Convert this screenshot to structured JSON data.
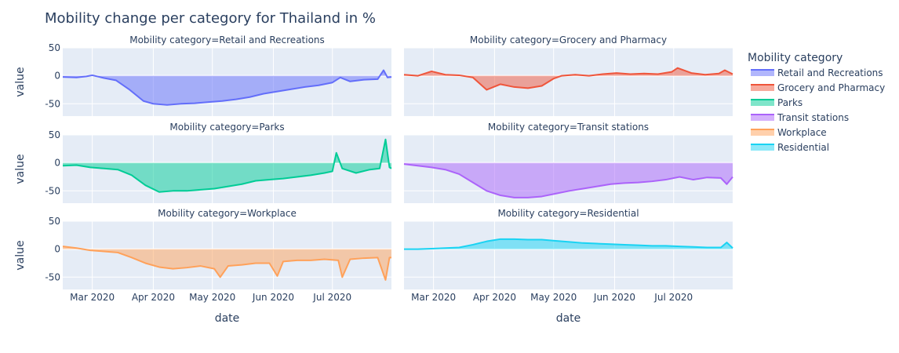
{
  "chart_data": {
    "type": "area",
    "title": "Mobility change per category for Thailand in %",
    "xlabel": "date",
    "ylabel": "value",
    "ylim": [
      -72,
      50
    ],
    "yticks": [
      50,
      0,
      -50
    ],
    "xrange": [
      "2020-02-15",
      "2020-07-31"
    ],
    "xticks": [
      {
        "date": "2020-03-01",
        "label": "Mar 2020"
      },
      {
        "date": "2020-04-01",
        "label": "Apr 2020"
      },
      {
        "date": "2020-05-01",
        "label": "May 2020"
      },
      {
        "date": "2020-06-01",
        "label": "Jun 2020"
      },
      {
        "date": "2020-07-01",
        "label": "Jul 2020"
      }
    ],
    "grid": true,
    "legend": {
      "title": "Mobility category",
      "position": "right"
    },
    "series": [
      {
        "name": "Retail and Recreations",
        "subtitle": "Mobility category=Retail and Recreations",
        "color": "#636efa",
        "points": [
          [
            "2020-02-15",
            -2
          ],
          [
            "2020-02-22",
            -3
          ],
          [
            "2020-02-27",
            -1
          ],
          [
            "2020-03-01",
            1
          ],
          [
            "2020-03-07",
            -4
          ],
          [
            "2020-03-13",
            -8
          ],
          [
            "2020-03-20",
            -25
          ],
          [
            "2020-03-27",
            -45
          ],
          [
            "2020-04-01",
            -50
          ],
          [
            "2020-04-08",
            -52
          ],
          [
            "2020-04-15",
            -50
          ],
          [
            "2020-04-22",
            -49
          ],
          [
            "2020-04-29",
            -47
          ],
          [
            "2020-05-06",
            -45
          ],
          [
            "2020-05-13",
            -42
          ],
          [
            "2020-05-20",
            -38
          ],
          [
            "2020-05-27",
            -32
          ],
          [
            "2020-06-03",
            -28
          ],
          [
            "2020-06-10",
            -24
          ],
          [
            "2020-06-17",
            -20
          ],
          [
            "2020-06-24",
            -17
          ],
          [
            "2020-07-01",
            -12
          ],
          [
            "2020-07-05",
            -3
          ],
          [
            "2020-07-10",
            -10
          ],
          [
            "2020-07-17",
            -7
          ],
          [
            "2020-07-24",
            -6
          ],
          [
            "2020-07-27",
            10
          ],
          [
            "2020-07-29",
            -3
          ],
          [
            "2020-07-31",
            -2
          ]
        ]
      },
      {
        "name": "Grocery and Pharmacy",
        "subtitle": "Mobility category=Grocery and Pharmacy",
        "color": "#ef553b",
        "points": [
          [
            "2020-02-15",
            2
          ],
          [
            "2020-02-22",
            0
          ],
          [
            "2020-02-29",
            8
          ],
          [
            "2020-03-07",
            2
          ],
          [
            "2020-03-14",
            1
          ],
          [
            "2020-03-21",
            -3
          ],
          [
            "2020-03-28",
            -25
          ],
          [
            "2020-04-04",
            -15
          ],
          [
            "2020-04-11",
            -20
          ],
          [
            "2020-04-18",
            -22
          ],
          [
            "2020-04-25",
            -18
          ],
          [
            "2020-05-01",
            -5
          ],
          [
            "2020-05-05",
            0
          ],
          [
            "2020-05-12",
            2
          ],
          [
            "2020-05-19",
            0
          ],
          [
            "2020-05-26",
            3
          ],
          [
            "2020-06-02",
            5
          ],
          [
            "2020-06-09",
            3
          ],
          [
            "2020-06-16",
            4
          ],
          [
            "2020-06-23",
            3
          ],
          [
            "2020-06-30",
            7
          ],
          [
            "2020-07-03",
            14
          ],
          [
            "2020-07-10",
            5
          ],
          [
            "2020-07-17",
            2
          ],
          [
            "2020-07-24",
            4
          ],
          [
            "2020-07-27",
            10
          ],
          [
            "2020-07-31",
            3
          ]
        ]
      },
      {
        "name": "Parks",
        "subtitle": "Mobility category=Parks",
        "color": "#00cc96",
        "points": [
          [
            "2020-02-15",
            -5
          ],
          [
            "2020-02-22",
            -4
          ],
          [
            "2020-02-29",
            -8
          ],
          [
            "2020-03-07",
            -10
          ],
          [
            "2020-03-14",
            -12
          ],
          [
            "2020-03-21",
            -22
          ],
          [
            "2020-03-28",
            -40
          ],
          [
            "2020-04-04",
            -52
          ],
          [
            "2020-04-11",
            -50
          ],
          [
            "2020-04-18",
            -50
          ],
          [
            "2020-04-25",
            -48
          ],
          [
            "2020-05-02",
            -46
          ],
          [
            "2020-05-09",
            -42
          ],
          [
            "2020-05-16",
            -38
          ],
          [
            "2020-05-23",
            -32
          ],
          [
            "2020-05-30",
            -30
          ],
          [
            "2020-06-06",
            -28
          ],
          [
            "2020-06-13",
            -25
          ],
          [
            "2020-06-20",
            -22
          ],
          [
            "2020-06-27",
            -18
          ],
          [
            "2020-07-01",
            -15
          ],
          [
            "2020-07-03",
            18
          ],
          [
            "2020-07-06",
            -10
          ],
          [
            "2020-07-13",
            -18
          ],
          [
            "2020-07-20",
            -12
          ],
          [
            "2020-07-25",
            -10
          ],
          [
            "2020-07-28",
            42
          ],
          [
            "2020-07-30",
            -8
          ],
          [
            "2020-07-31",
            -10
          ]
        ]
      },
      {
        "name": "Transit stations",
        "subtitle": "Mobility category=Transit stations",
        "color": "#ab63fa",
        "points": [
          [
            "2020-02-15",
            -2
          ],
          [
            "2020-02-22",
            -5
          ],
          [
            "2020-02-29",
            -8
          ],
          [
            "2020-03-07",
            -12
          ],
          [
            "2020-03-14",
            -20
          ],
          [
            "2020-03-21",
            -35
          ],
          [
            "2020-03-28",
            -50
          ],
          [
            "2020-04-04",
            -58
          ],
          [
            "2020-04-11",
            -62
          ],
          [
            "2020-04-18",
            -62
          ],
          [
            "2020-04-25",
            -60
          ],
          [
            "2020-05-02",
            -55
          ],
          [
            "2020-05-09",
            -50
          ],
          [
            "2020-05-16",
            -46
          ],
          [
            "2020-05-23",
            -42
          ],
          [
            "2020-05-30",
            -38
          ],
          [
            "2020-06-06",
            -36
          ],
          [
            "2020-06-13",
            -35
          ],
          [
            "2020-06-20",
            -33
          ],
          [
            "2020-06-27",
            -30
          ],
          [
            "2020-07-04",
            -25
          ],
          [
            "2020-07-11",
            -30
          ],
          [
            "2020-07-18",
            -26
          ],
          [
            "2020-07-25",
            -27
          ],
          [
            "2020-07-28",
            -38
          ],
          [
            "2020-07-31",
            -25
          ]
        ]
      },
      {
        "name": "Workplace",
        "subtitle": "Mobility category=Workplace",
        "color": "#ffa15a",
        "points": [
          [
            "2020-02-15",
            5
          ],
          [
            "2020-02-22",
            2
          ],
          [
            "2020-02-29",
            -2
          ],
          [
            "2020-03-07",
            -4
          ],
          [
            "2020-03-14",
            -6
          ],
          [
            "2020-03-21",
            -15
          ],
          [
            "2020-03-28",
            -25
          ],
          [
            "2020-04-04",
            -32
          ],
          [
            "2020-04-11",
            -35
          ],
          [
            "2020-04-18",
            -33
          ],
          [
            "2020-04-25",
            -30
          ],
          [
            "2020-05-02",
            -35
          ],
          [
            "2020-05-05",
            -50
          ],
          [
            "2020-05-09",
            -30
          ],
          [
            "2020-05-16",
            -28
          ],
          [
            "2020-05-23",
            -25
          ],
          [
            "2020-05-30",
            -25
          ],
          [
            "2020-06-03",
            -48
          ],
          [
            "2020-06-06",
            -22
          ],
          [
            "2020-06-13",
            -20
          ],
          [
            "2020-06-20",
            -20
          ],
          [
            "2020-06-27",
            -18
          ],
          [
            "2020-07-04",
            -20
          ],
          [
            "2020-07-06",
            -50
          ],
          [
            "2020-07-10",
            -18
          ],
          [
            "2020-07-17",
            -16
          ],
          [
            "2020-07-24",
            -15
          ],
          [
            "2020-07-28",
            -55
          ],
          [
            "2020-07-30",
            -15
          ],
          [
            "2020-07-31",
            -15
          ]
        ]
      },
      {
        "name": "Residential",
        "subtitle": "Mobility category=Residential",
        "color": "#19d3f3",
        "points": [
          [
            "2020-02-15",
            0
          ],
          [
            "2020-02-22",
            0
          ],
          [
            "2020-02-29",
            1
          ],
          [
            "2020-03-07",
            2
          ],
          [
            "2020-03-14",
            3
          ],
          [
            "2020-03-21",
            8
          ],
          [
            "2020-03-28",
            14
          ],
          [
            "2020-04-04",
            18
          ],
          [
            "2020-04-11",
            18
          ],
          [
            "2020-04-18",
            17
          ],
          [
            "2020-04-25",
            17
          ],
          [
            "2020-05-02",
            15
          ],
          [
            "2020-05-09",
            13
          ],
          [
            "2020-05-16",
            11
          ],
          [
            "2020-05-23",
            10
          ],
          [
            "2020-05-30",
            9
          ],
          [
            "2020-06-06",
            8
          ],
          [
            "2020-06-13",
            7
          ],
          [
            "2020-06-20",
            6
          ],
          [
            "2020-06-27",
            6
          ],
          [
            "2020-07-04",
            5
          ],
          [
            "2020-07-11",
            4
          ],
          [
            "2020-07-18",
            3
          ],
          [
            "2020-07-25",
            3
          ],
          [
            "2020-07-28",
            12
          ],
          [
            "2020-07-31",
            2
          ]
        ]
      }
    ]
  }
}
